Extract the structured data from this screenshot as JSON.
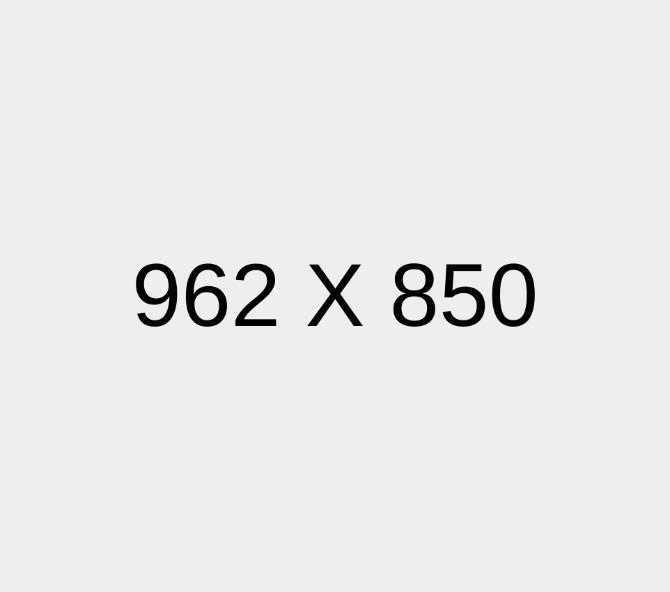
{
  "placeholder": {
    "label": "962 X 850",
    "background_color": "#eeeeee",
    "text_color": "#000000"
  }
}
